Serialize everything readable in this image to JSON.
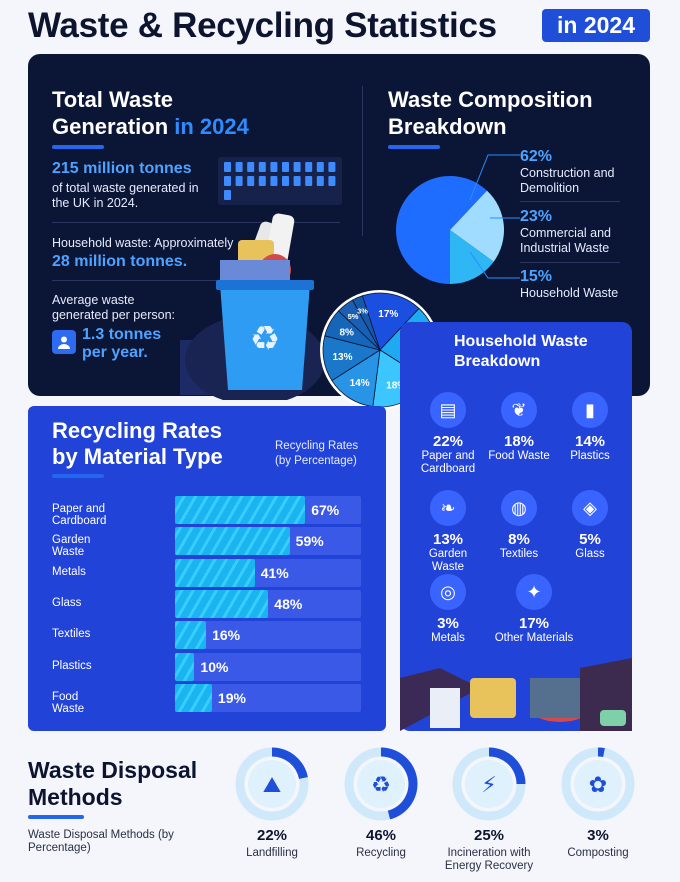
{
  "header": {
    "title": "Waste & Recycling Statistics",
    "year": "in 2024"
  },
  "total": {
    "title_line1": "Total Waste",
    "title_line2": "Generation",
    "title_accent": "in 2024",
    "amount": "215 million tonnes",
    "amount_desc": "of total waste generated in the UK in 2024.",
    "household_label": "Household waste: Approximately",
    "household_value": "28 million tonnes.",
    "per_person_label": "Average waste generated per person:",
    "per_person_value_line1": "1.3 tonnes",
    "per_person_value_line2": "per year."
  },
  "composition": {
    "title_line1": "Waste Composition",
    "title_line2": "Breakdown",
    "items": [
      {
        "pct": "62%",
        "label": "Construction and Demolition"
      },
      {
        "pct": "23%",
        "label": "Commercial and Industrial Waste"
      },
      {
        "pct": "15%",
        "label": "Household Waste"
      }
    ]
  },
  "recycling": {
    "title_line1": "Recycling Rates",
    "title_line2": "by Material Type",
    "subtitle": "Recycling Rates (by Percentage)"
  },
  "household": {
    "title_line1": "Household Waste",
    "title_line2": "Breakdown",
    "items": [
      {
        "pct": "22%",
        "label": "Paper and Cardboard",
        "icon": "paper-icon"
      },
      {
        "pct": "18%",
        "label": "Food Waste",
        "icon": "food-icon"
      },
      {
        "pct": "14%",
        "label": "Plastics",
        "icon": "plastic-icon"
      },
      {
        "pct": "13%",
        "label": "Garden Waste",
        "icon": "leaf-icon"
      },
      {
        "pct": "8%",
        "label": "Textiles",
        "icon": "textile-icon"
      },
      {
        "pct": "5%",
        "label": "Glass",
        "icon": "glass-icon"
      },
      {
        "pct": "3%",
        "label": "Metals",
        "icon": "metal-icon"
      },
      {
        "pct": "17%",
        "label": "Other Materials",
        "icon": "other-icon"
      }
    ]
  },
  "disposal": {
    "title_line1": "Waste Disposal",
    "title_line2": "Methods",
    "subtitle": "Waste Disposal Methods (by Percentage)",
    "items": [
      {
        "pct": "22%",
        "label": "Landfilling",
        "value": 22
      },
      {
        "pct": "46%",
        "label": "Recycling",
        "value": 46
      },
      {
        "pct": "25%",
        "label": "Incineration with Energy Recovery",
        "value": 25
      },
      {
        "pct": "3%",
        "label": "Composting",
        "value": 3
      }
    ]
  },
  "chart_data": [
    {
      "type": "pie",
      "categories": [
        "Construction and Demolition",
        "Commercial and Industrial Waste",
        "Household Waste"
      ],
      "values": [
        62,
        23,
        15
      ],
      "colors": [
        "#1f6dff",
        "#9fdcff",
        "#2fb6f5"
      ]
    },
    {
      "type": "pie",
      "categories": [
        "Paper and Cardboard",
        "Food Waste",
        "Plastics",
        "Garden Waste",
        "Textiles",
        "Glass",
        "Metals",
        "Other Materials"
      ],
      "values": [
        22,
        18,
        14,
        13,
        8,
        5,
        3,
        17
      ],
      "labels": [
        "22%",
        "18%",
        "14%",
        "13%",
        "8%",
        "5%",
        "3%",
        "17%"
      ],
      "colors": [
        "#1eaaf0",
        "#3cc6ff",
        "#2894e6",
        "#1a77c9",
        "#1566b8",
        "#1a5fb3",
        "#155aa8",
        "#1a4fe0"
      ]
    },
    {
      "type": "bar",
      "orientation": "horizontal",
      "title": "Recycling Rates (by Percentage)",
      "categories": [
        "Paper and Cardboard",
        "Garden Waste",
        "Metals",
        "Glass",
        "Textiles",
        "Plastics",
        "Food Waste"
      ],
      "values": [
        67,
        59,
        41,
        48,
        16,
        10,
        19
      ],
      "labels": [
        "67%",
        "59%",
        "41%",
        "48%",
        "16%",
        "10%",
        "19%"
      ],
      "xlim": [
        0,
        100
      ]
    },
    {
      "type": "pie",
      "title": "Waste Disposal Methods (by Percentage)",
      "categories": [
        "Landfilling",
        "Recycling",
        "Incineration with Energy Recovery",
        "Composting"
      ],
      "values": [
        22,
        46,
        25,
        3
      ]
    }
  ],
  "colors": {
    "dark": "#0b1535",
    "blue_panel": "#2243d8",
    "accent": "#2e8cff",
    "bar": "#1ab4f0"
  }
}
